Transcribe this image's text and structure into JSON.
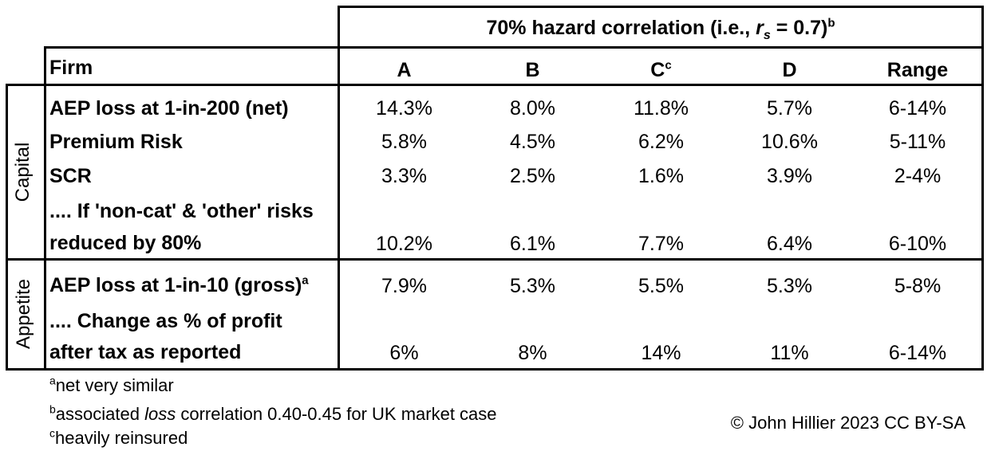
{
  "header": {
    "group_title_pre": "70% hazard correlation (i.e., ",
    "group_title_var": "r",
    "group_title_sub": "s",
    "group_title_post": " = 0.7)",
    "group_title_sup": "b",
    "firm_label": "Firm",
    "columns": [
      "A",
      "B",
      "C",
      "D",
      "Range"
    ],
    "c_sup": "c"
  },
  "side_labels": {
    "capital": "Capital",
    "appetite": "Appetite"
  },
  "rows": [
    {
      "label": "AEP loss at 1-in-200 (net)",
      "values": [
        "14.3%",
        "8.0%",
        "11.8%",
        "5.7%",
        "6-14%"
      ]
    },
    {
      "label": "Premium Risk",
      "values": [
        "5.8%",
        "4.5%",
        "6.2%",
        "10.6%",
        "5-11%"
      ]
    },
    {
      "label": "SCR",
      "values": [
        "3.3%",
        "2.5%",
        "1.6%",
        "3.9%",
        "2-4%"
      ]
    },
    {
      "label_line1": ".... If 'non-cat' & 'other' risks",
      "label_line2": "reduced by 80%",
      "values": [
        "10.2%",
        "6.1%",
        "7.7%",
        "6.4%",
        "6-10%"
      ]
    },
    {
      "label": "AEP loss at 1-in-10 (gross)",
      "label_sup": "a",
      "values": [
        "7.9%",
        "5.3%",
        "5.5%",
        "5.3%",
        "5-8%"
      ]
    },
    {
      "label_line1": ".... Change as % of profit",
      "label_line2": "after tax as reported",
      "values": [
        "6%",
        "8%",
        "14%",
        "11%",
        "6-14%"
      ]
    }
  ],
  "footnotes": {
    "a_mark": "a",
    "a_text": "net very similar",
    "b_mark": "b",
    "b_pre": "associated ",
    "b_italic": "loss",
    "b_post": " correlation 0.40-0.45 for UK market case",
    "c_mark": "c",
    "c_text": "heavily reinsured"
  },
  "credit": "© John Hillier 2023 CC BY-SA"
}
